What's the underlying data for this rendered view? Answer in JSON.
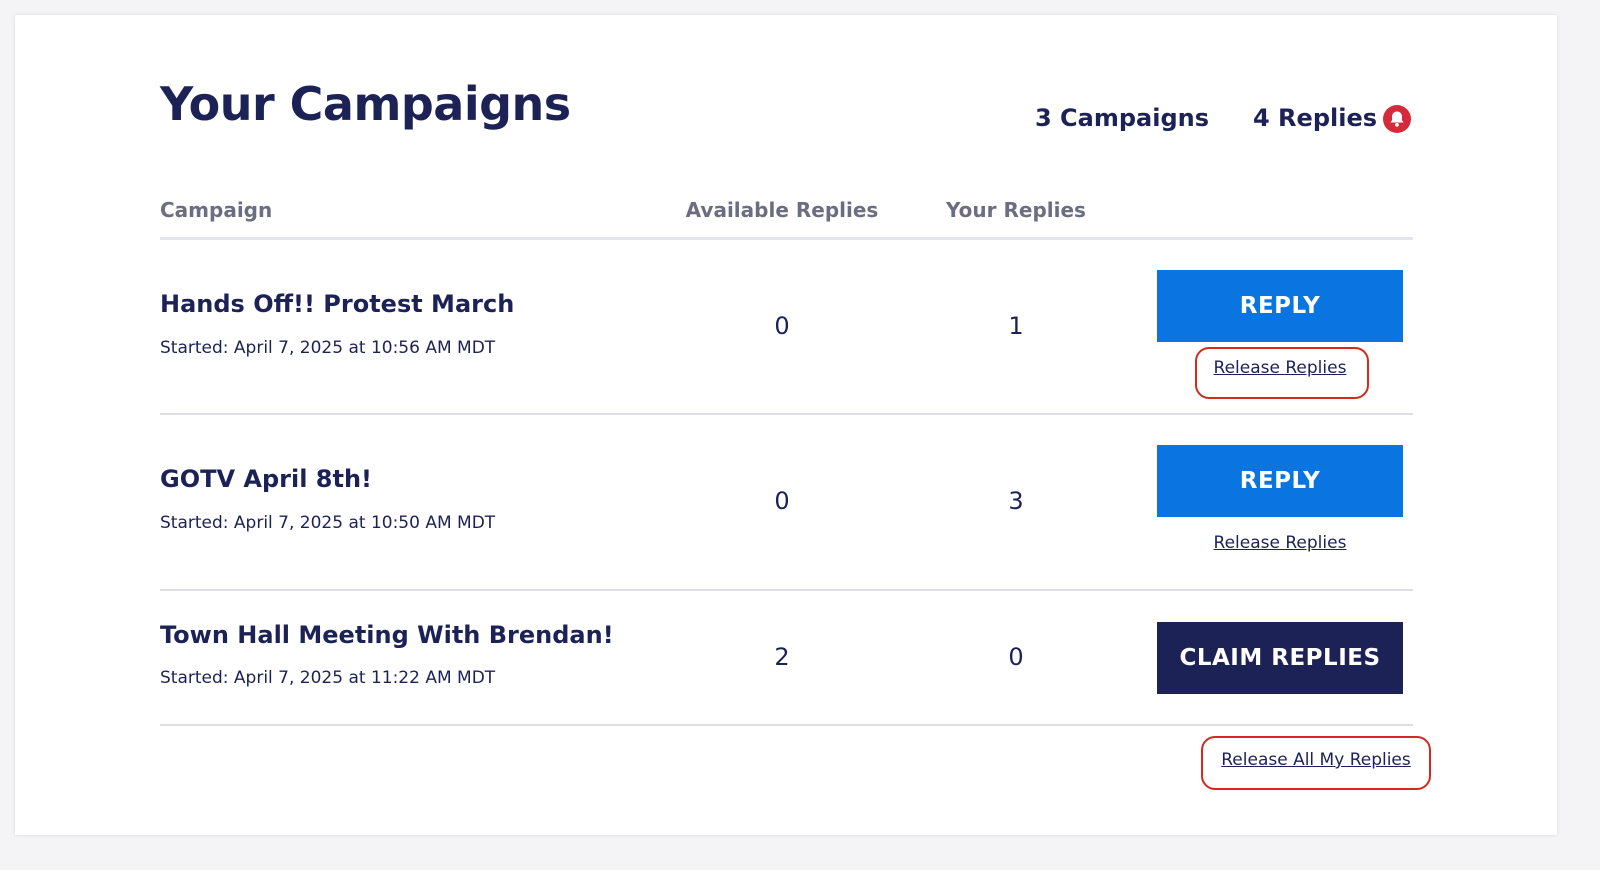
{
  "header": {
    "title": "Your Campaigns",
    "campaign_count": "3 Campaigns",
    "reply_count": "4 Replies",
    "notification_icon": "bell-icon",
    "notification_color": "#d42a3a"
  },
  "table": {
    "columns": {
      "campaign": "Campaign",
      "available": "Available Replies",
      "yours": "Your Replies"
    },
    "rows": [
      {
        "name": "Hands Off!! Protest March",
        "started": "Started: April 7, 2025 at 10:56 AM MDT",
        "available": "0",
        "yours": "1",
        "action_label": "REPLY",
        "release_label": "Release Replies"
      },
      {
        "name": "GOTV April 8th!",
        "started": "Started: April 7, 2025 at 10:50 AM MDT",
        "available": "0",
        "yours": "3",
        "action_label": "REPLY",
        "release_label": "Release Replies"
      },
      {
        "name": "Town Hall Meeting With Brendan!",
        "started": "Started: April 7, 2025 at 11:22 AM MDT",
        "available": "2",
        "yours": "0",
        "action_label": "CLAIM REPLIES"
      }
    ]
  },
  "footer": {
    "release_all_label": "Release All My Replies"
  },
  "colors": {
    "primary_navy": "#1c2256",
    "reply_blue": "#0a74e0",
    "highlight_red": "#d42a1e"
  }
}
